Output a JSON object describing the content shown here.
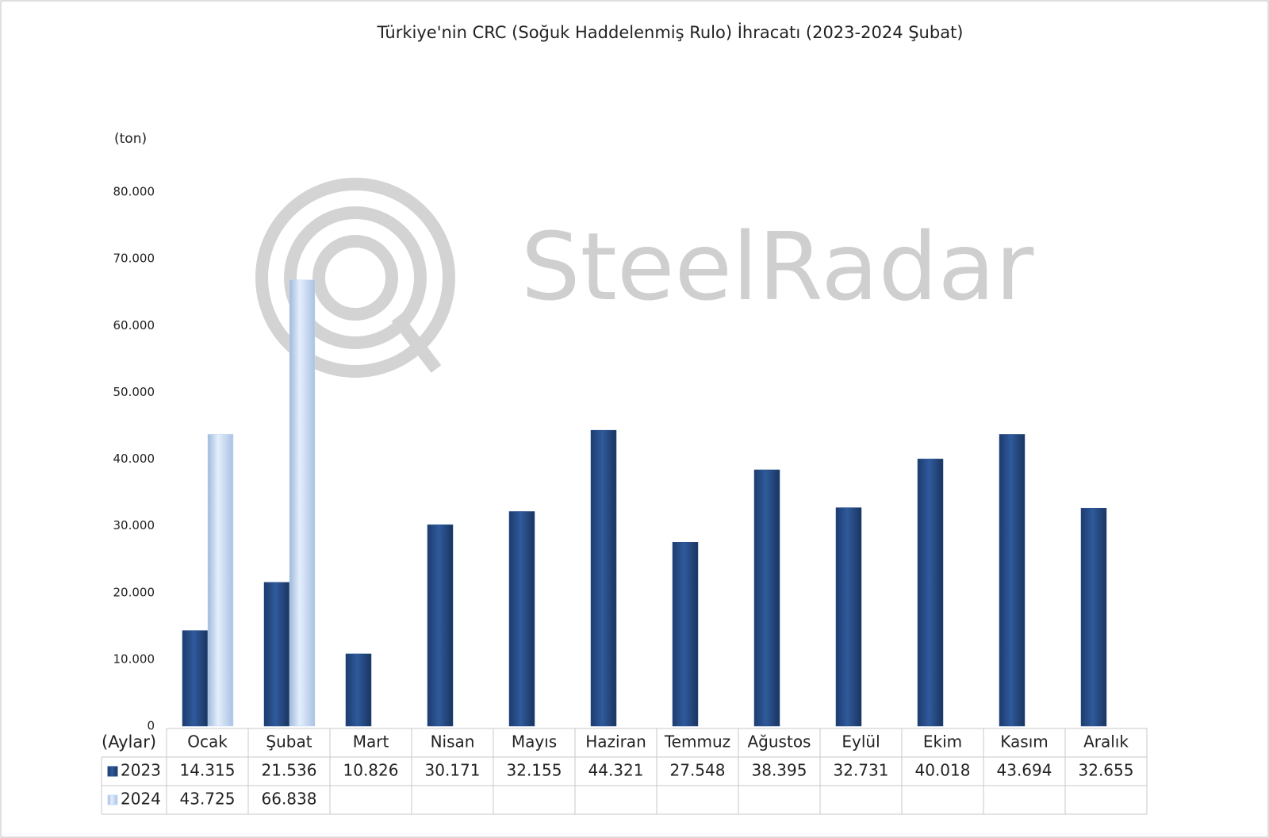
{
  "chart_data": {
    "type": "bar",
    "title": "Türkiye'nin CRC (Soğuk Haddelenmiş Rulo) İhracatı (2023-2024 Şubat)",
    "y_label": "(ton)",
    "x_label": "(Aylar)",
    "watermark": "SteelRadar",
    "categories": [
      "Ocak",
      "Şubat",
      "Mart",
      "Nisan",
      "Mayıs",
      "Haziran",
      "Temmuz",
      "Ağustos",
      "Eylül",
      "Ekim",
      "Kasım",
      "Aralık"
    ],
    "series": [
      {
        "name": "2023",
        "color": "#264d8c",
        "values": [
          14315,
          21536,
          10826,
          30171,
          32155,
          44321,
          27548,
          38395,
          32731,
          40018,
          43694,
          32655
        ],
        "value_labels": [
          "14.315",
          "21.536",
          "10.826",
          "30.171",
          "32.155",
          "44.321",
          "27.548",
          "38.395",
          "32.731",
          "40.018",
          "43.694",
          "32.655"
        ]
      },
      {
        "name": "2024",
        "color": "#c6dbf7",
        "values": [
          43725,
          66838,
          null,
          null,
          null,
          null,
          null,
          null,
          null,
          null,
          null,
          null
        ],
        "value_labels": [
          "43.725",
          "66.838",
          null,
          null,
          null,
          null,
          null,
          null,
          null,
          null,
          null,
          null
        ]
      }
    ],
    "ylim": [
      0,
      80000
    ],
    "yticks": [
      0,
      {
        "value": 10000,
        "label": "10.000"
      },
      {
        "value": 20000,
        "label": "20.000"
      },
      {
        "value": 30000,
        "label": "30.000"
      },
      {
        "value": 40000,
        "label": "40.000"
      },
      {
        "value": 50000,
        "label": "50.000"
      },
      {
        "value": 60000,
        "label": "60.000"
      },
      {
        "value": 70000,
        "label": "70.000"
      },
      {
        "value": 80000,
        "label": "80.000"
      }
    ]
  }
}
